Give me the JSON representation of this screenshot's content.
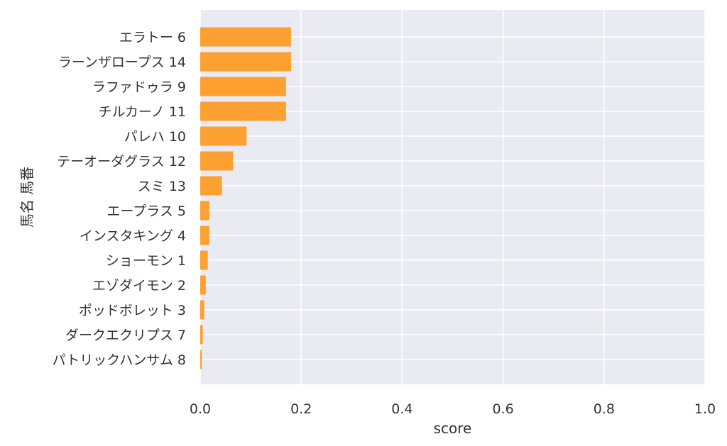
{
  "chart_data": {
    "type": "bar",
    "orientation": "horizontal",
    "xlabel": "score",
    "ylabel": "馬名 馬番",
    "xlim": [
      0.0,
      1.0
    ],
    "xticks": [
      "0.0",
      "0.2",
      "0.4",
      "0.6",
      "0.8",
      "1.0"
    ],
    "grid": true,
    "bar_color": "#fca031",
    "background_color": "#eaeaf2",
    "categories": [
      "エラトー 6",
      "ラーンザロープス 14",
      "ラファドゥラ 9",
      "チルカーノ 11",
      "パレハ 10",
      "テーオーダグラス 12",
      "スミ 13",
      "エープラス 5",
      "インスタキング 4",
      "ショーモン 1",
      "エゾダイモン 2",
      "ポッドボレット 3",
      "ダークエクリプス 7",
      "パトリックハンサム 8"
    ],
    "values": [
      0.18,
      0.18,
      0.17,
      0.17,
      0.092,
      0.065,
      0.043,
      0.018,
      0.018,
      0.015,
      0.011,
      0.008,
      0.005,
      0.003
    ]
  }
}
